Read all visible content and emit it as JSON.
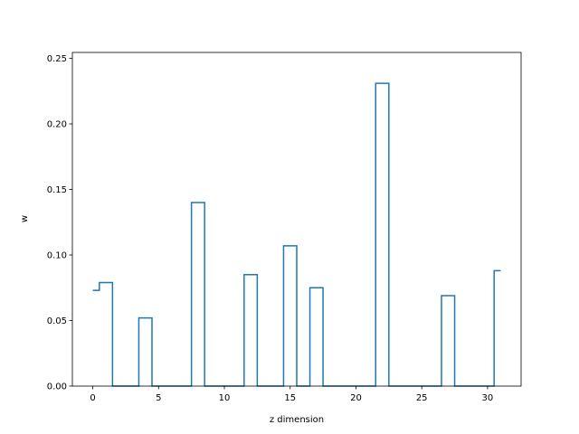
{
  "chart_data": {
    "type": "line",
    "style": "steps-mid",
    "title": "",
    "xlabel": "z dimension",
    "ylabel": "w",
    "xlim": [
      -1.55,
      32.55
    ],
    "ylim": [
      0,
      0.2545
    ],
    "xticks": [
      0,
      5,
      10,
      15,
      20,
      25,
      30
    ],
    "yticks": [
      0.0,
      0.05,
      0.1,
      0.15,
      0.2,
      0.25
    ],
    "ytick_labels": [
      "0.00",
      "0.05",
      "0.10",
      "0.15",
      "0.20",
      "0.25"
    ],
    "grid": false,
    "line_color": "#1f77b4",
    "x": [
      0,
      1,
      2,
      3,
      4,
      5,
      6,
      7,
      8,
      9,
      10,
      11,
      12,
      13,
      14,
      15,
      16,
      17,
      18,
      19,
      20,
      21,
      22,
      23,
      24,
      25,
      26,
      27,
      28,
      29,
      30,
      31
    ],
    "values": [
      0.073,
      0.079,
      0,
      0,
      0.052,
      0,
      0,
      0,
      0.14,
      0,
      0,
      0,
      0.085,
      0,
      0,
      0.107,
      0,
      0.075,
      0,
      0,
      0,
      0,
      0.231,
      0,
      0,
      0,
      0,
      0.069,
      0,
      0,
      0,
      0.088
    ]
  }
}
